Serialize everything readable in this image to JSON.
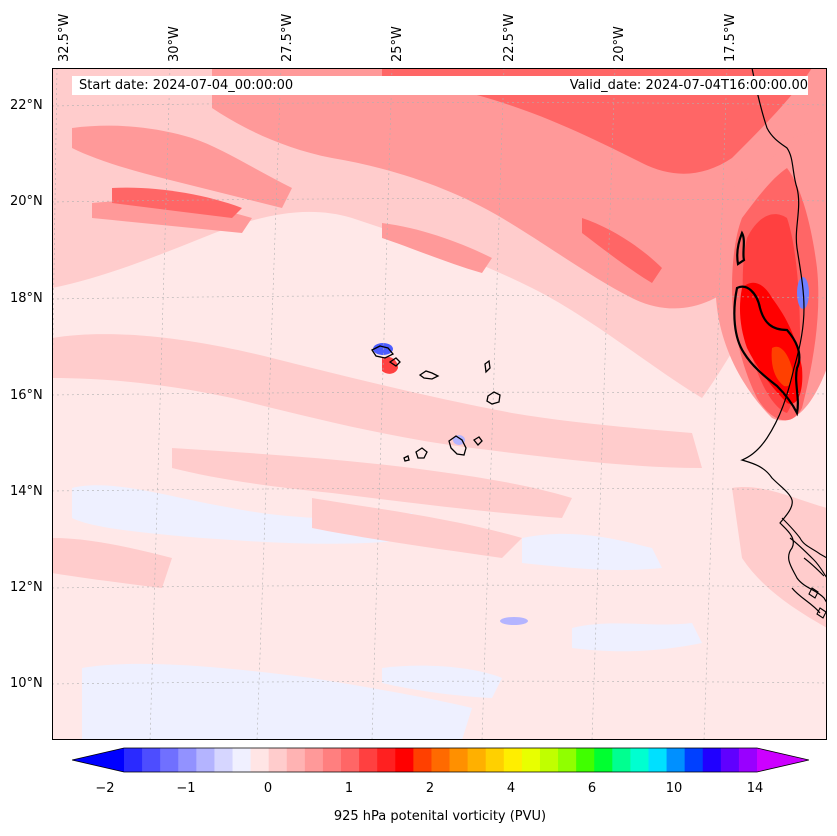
{
  "header": {
    "start_text": "Start date: 2024-07-04_00:00:00",
    "valid_text": "Valid_date: 2024-07-04T16:00:00.00"
  },
  "axes": {
    "lon_labels": [
      "32.5°W",
      "30°W",
      "27.5°W",
      "25°W",
      "22.5°W",
      "20°W",
      "17.5°W"
    ],
    "lat_labels": [
      "22°N",
      "20°N",
      "18°N",
      "16°N",
      "14°N",
      "12°N",
      "10°N"
    ]
  },
  "colorbar": {
    "label": "925 hPa potenital vorticity (PVU)",
    "tick_labels": [
      "−2",
      "−1",
      "0",
      "1",
      "2",
      "4",
      "6",
      "10",
      "14"
    ],
    "extend": "both",
    "colors": [
      "#0000ff",
      "#2a2aff",
      "#4d4dff",
      "#7070ff",
      "#9292ff",
      "#b4b4ff",
      "#d6d6ff",
      "#f0f0ff",
      "#ffe5e5",
      "#ffcccc",
      "#ffb3b3",
      "#ff9999",
      "#ff7f7f",
      "#ff6666",
      "#ff4040",
      "#ff2020",
      "#ff0000",
      "#ff4000",
      "#ff6a00",
      "#ff9000",
      "#ffb000",
      "#ffd000",
      "#ffee00",
      "#e8ff00",
      "#c0ff00",
      "#90ff00",
      "#40ff00",
      "#00ff30",
      "#00ff90",
      "#00ffd0",
      "#00e0ff",
      "#0090ff",
      "#0040ff",
      "#2000ff",
      "#6000ff",
      "#9900ff",
      "#cc00ff"
    ]
  },
  "map": {
    "field_colors": {
      "negative": "#eef0ff",
      "weak_pos": "#ffe5e5",
      "pos": "#ffcccc",
      "mid": "#ff9999",
      "strong": "#ff4040",
      "max": "#ff0000",
      "neg_spot": "#4d5dff"
    },
    "coastline_color": "#000000"
  }
}
